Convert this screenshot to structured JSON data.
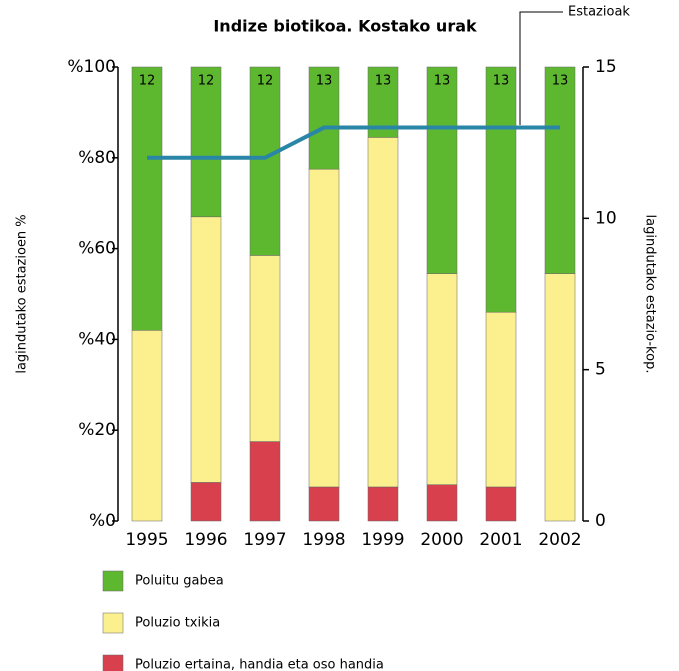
{
  "chart_data": {
    "type": "bar",
    "stacked": true,
    "title": "Indize biotikoa. Kostako urak",
    "ylabel": "lagindutako estazioen %",
    "y2label": "lagindutako estazio-kop.",
    "categories": [
      "1995",
      "1996",
      "1997",
      "1998",
      "1999",
      "2000",
      "2001",
      "2002"
    ],
    "series": [
      {
        "name": "Poluitu gabea",
        "color": "#5db82f",
        "values": [
          58,
          33,
          41.5,
          22.5,
          15.5,
          45.5,
          54,
          45.5
        ]
      },
      {
        "name": "Poluzio txikia",
        "color": "#fbf08d",
        "values": [
          42,
          58.5,
          41,
          70,
          77,
          46.5,
          38.5,
          54.5
        ]
      },
      {
        "name": "Poluzio ertaina, handia eta oso handia",
        "color": "#d8404e",
        "values": [
          0,
          8.5,
          17.5,
          7.5,
          7.5,
          8,
          7.5,
          0
        ]
      },
      {
        "name": "Estazioak",
        "type": "line",
        "axis": "y2",
        "color": "#2a86a6",
        "values": [
          12,
          12,
          12,
          13,
          13,
          13,
          13,
          13
        ]
      }
    ],
    "ylim": [
      0,
      100
    ],
    "yticks": [
      {
        "value": 0,
        "label": "%0"
      },
      {
        "value": 20,
        "label": "%20"
      },
      {
        "value": 40,
        "label": "%40"
      },
      {
        "value": 60,
        "label": "%60"
      },
      {
        "value": 80,
        "label": "%80"
      },
      {
        "value": 100,
        "label": "%100"
      }
    ],
    "y2lim": [
      0,
      15
    ],
    "y2ticks": [
      0,
      5,
      10,
      15
    ]
  }
}
